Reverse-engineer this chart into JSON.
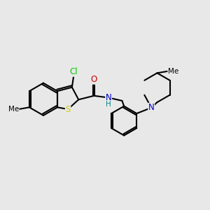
{
  "background_color": "#e8e8e8",
  "bond_color": "#000000",
  "bond_width": 1.5,
  "atom_colors": {
    "Cl": "#00cc00",
    "S": "#cccc00",
    "N": "#0000cc",
    "O": "#cc0000",
    "C": "#000000",
    "H": "#008888"
  },
  "xlim": [
    -2.6,
    2.8
  ],
  "ylim": [
    -1.6,
    1.6
  ]
}
